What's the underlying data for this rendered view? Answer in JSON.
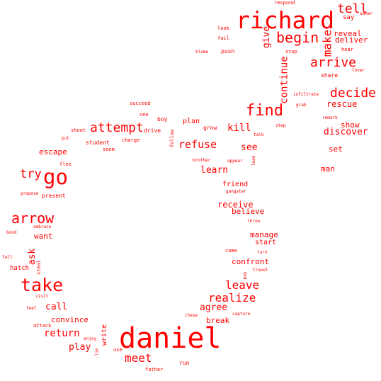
{
  "accent_color": "#ff0000",
  "background_color": "#ffffff",
  "words": [
    {
      "text": "richard"
    },
    {
      "text": "daniel"
    },
    {
      "text": "go"
    },
    {
      "text": "take"
    },
    {
      "text": "arrow"
    },
    {
      "text": "find"
    },
    {
      "text": "begin"
    },
    {
      "text": "tell"
    },
    {
      "text": "arrive"
    },
    {
      "text": "decide"
    },
    {
      "text": "attempt"
    },
    {
      "text": "leave"
    },
    {
      "text": "realize"
    },
    {
      "text": "meet"
    },
    {
      "text": "try"
    },
    {
      "text": "make"
    },
    {
      "text": "continue"
    },
    {
      "text": "refuse"
    },
    {
      "text": "kill"
    },
    {
      "text": "discover"
    },
    {
      "text": "see"
    },
    {
      "text": "return"
    },
    {
      "text": "play"
    },
    {
      "text": "call"
    },
    {
      "text": "agree"
    },
    {
      "text": "learn"
    },
    {
      "text": "rescue"
    },
    {
      "text": "give"
    },
    {
      "text": "escape"
    },
    {
      "text": "receive"
    },
    {
      "text": "believe"
    },
    {
      "text": "confront"
    },
    {
      "text": "manage"
    },
    {
      "text": "show"
    },
    {
      "text": "reveal"
    },
    {
      "text": "deliver"
    },
    {
      "text": "ask"
    },
    {
      "text": "break"
    },
    {
      "text": "convince"
    },
    {
      "text": "man"
    },
    {
      "text": "set"
    },
    {
      "text": "want"
    },
    {
      "text": "start"
    },
    {
      "text": "write"
    },
    {
      "text": "plan"
    },
    {
      "text": "friend"
    },
    {
      "text": "say"
    },
    {
      "text": "hatch"
    },
    {
      "text": "drive"
    },
    {
      "text": "grow"
    },
    {
      "text": "student"
    },
    {
      "text": "present"
    },
    {
      "text": "push"
    },
    {
      "text": "hear"
    },
    {
      "text": "share"
    },
    {
      "text": "boy"
    },
    {
      "text": "seem"
    },
    {
      "text": "run"
    },
    {
      "text": "follow"
    },
    {
      "text": "charge"
    },
    {
      "text": "attack"
    },
    {
      "text": "steal"
    },
    {
      "text": "father"
    },
    {
      "text": "come"
    },
    {
      "text": "respond"
    },
    {
      "text": "look"
    },
    {
      "text": "fail"
    },
    {
      "text": "stop"
    },
    {
      "text": "succeed"
    },
    {
      "text": "one"
    },
    {
      "text": "shoot"
    },
    {
      "text": "put"
    },
    {
      "text": "flee"
    },
    {
      "text": "propose"
    },
    {
      "text": "embrace"
    },
    {
      "text": "bond"
    },
    {
      "text": "fall"
    },
    {
      "text": "visit"
    },
    {
      "text": "feel"
    },
    {
      "text": "enjoy"
    },
    {
      "text": "lie"
    },
    {
      "text": "use"
    },
    {
      "text": "chase"
    },
    {
      "text": "capture"
    },
    {
      "text": "travel"
    },
    {
      "text": "pay"
    },
    {
      "text": "turn"
    },
    {
      "text": "throw"
    },
    {
      "text": "gangster"
    },
    {
      "text": "appear"
    },
    {
      "text": "lead"
    },
    {
      "text": "brother"
    },
    {
      "text": "talk"
    },
    {
      "text": "step"
    },
    {
      "text": "remark"
    },
    {
      "text": "grab"
    },
    {
      "text": "infiltrate"
    },
    {
      "text": "lover"
    },
    {
      "text": "blame"
    },
    {
      "text": "owner"
    }
  ]
}
